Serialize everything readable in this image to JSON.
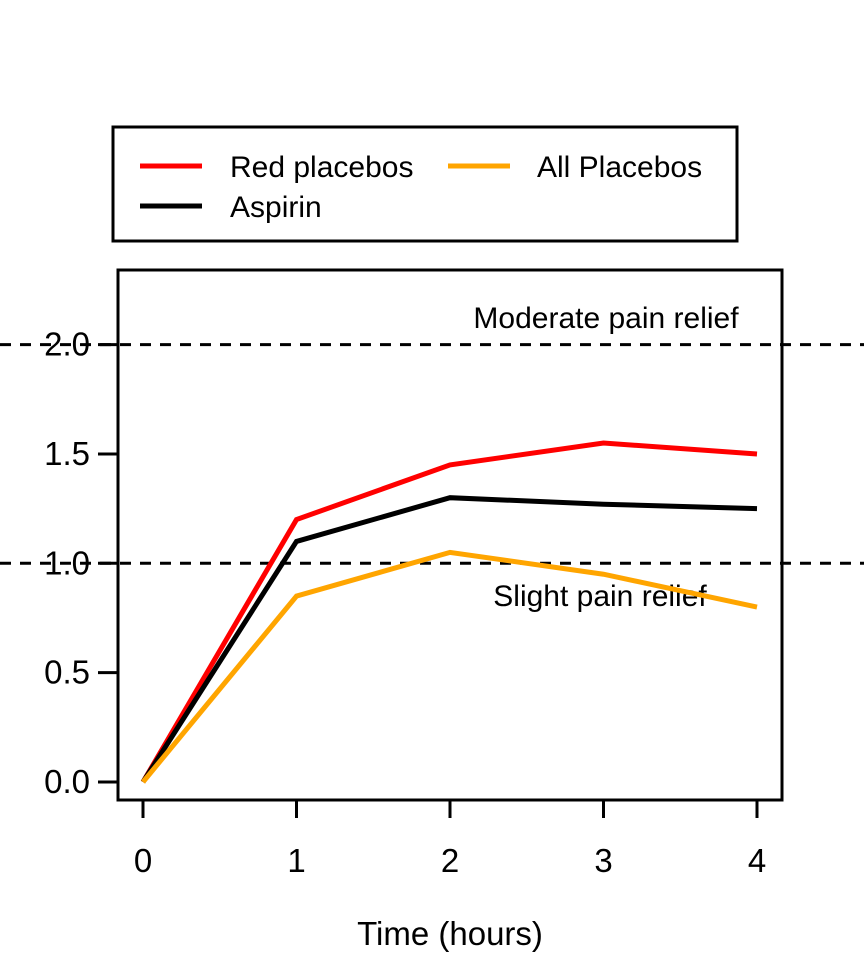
{
  "chart_data": {
    "type": "line",
    "x": [
      0,
      1,
      2,
      3,
      4
    ],
    "series": [
      {
        "name": "Red placebos",
        "color": "#ff0000",
        "values": [
          0.0,
          1.2,
          1.45,
          1.55,
          1.5
        ]
      },
      {
        "name": "Aspirin",
        "color": "#000000",
        "values": [
          0.0,
          1.1,
          1.3,
          1.27,
          1.25
        ]
      },
      {
        "name": "All Placebos",
        "color": "#ffa500",
        "values": [
          0.0,
          0.85,
          1.05,
          0.95,
          0.8
        ]
      }
    ],
    "title": "",
    "xlabel": "Time (hours)",
    "ylabel": "",
    "xlim": [
      0,
      4
    ],
    "ylim": [
      0,
      2.25
    ],
    "x_ticks": [
      "0",
      "1",
      "2",
      "3",
      "4"
    ],
    "y_ticks": [
      "0.0",
      "0.5",
      "1.0",
      "1.5",
      "2.0"
    ],
    "grid": false,
    "reference_lines": [
      {
        "value": 2.0,
        "label": "Moderate pain relief",
        "style": "dashed",
        "color": "#000000"
      },
      {
        "value": 1.0,
        "label": "Slight pain relief",
        "style": "dashed",
        "color": "#000000"
      }
    ],
    "legend": {
      "position": "top",
      "entries": [
        "Red placebos",
        "Aspirin",
        "All Placebos"
      ]
    }
  }
}
